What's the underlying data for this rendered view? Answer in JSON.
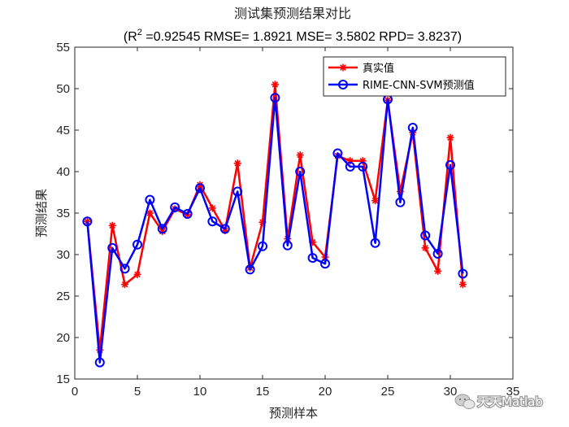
{
  "chart_data": {
    "type": "line",
    "title": "测试集预测结果对比",
    "subtitle": {
      "prefix": "(R",
      "sup": "2",
      "rest": " =0.92545 RMSE= 1.8921 MSE= 3.5802 RPD= 3.8237)"
    },
    "xlabel": "预测样本",
    "ylabel": "预测结果",
    "xlim": [
      0,
      35
    ],
    "ylim": [
      15,
      55
    ],
    "xticks": [
      0,
      5,
      10,
      15,
      20,
      25,
      30,
      35
    ],
    "yticks": [
      15,
      20,
      25,
      30,
      35,
      40,
      45,
      50,
      55
    ],
    "legend_position": "top-right",
    "x": [
      1,
      2,
      3,
      4,
      5,
      6,
      7,
      8,
      9,
      10,
      11,
      12,
      13,
      14,
      15,
      16,
      17,
      18,
      19,
      20,
      21,
      22,
      23,
      24,
      25,
      26,
      27,
      28,
      29,
      30,
      31
    ],
    "series": [
      {
        "name": "真实值",
        "color": "#ff0000",
        "marker": "asterisk",
        "values": [
          34.0,
          18.5,
          33.5,
          26.4,
          27.6,
          35.0,
          32.8,
          35.5,
          34.8,
          38.4,
          35.6,
          32.9,
          41.0,
          28.4,
          33.9,
          50.5,
          31.9,
          42.0,
          31.5,
          29.7,
          41.9,
          41.3,
          41.3,
          36.5,
          48.6,
          37.6,
          44.7,
          30.8,
          28.0,
          44.1,
          26.4
        ]
      },
      {
        "name": "RIME-CNN-SVM预测值",
        "color": "#0000ff",
        "marker": "circle",
        "values": [
          34.0,
          17.0,
          30.8,
          28.3,
          31.2,
          36.6,
          33.1,
          35.7,
          34.9,
          38.0,
          34.0,
          33.1,
          37.6,
          28.2,
          31.0,
          48.9,
          31.1,
          40.0,
          29.6,
          28.9,
          42.2,
          40.6,
          40.6,
          31.4,
          48.7,
          36.3,
          45.3,
          32.3,
          30.1,
          40.8,
          27.7
        ]
      }
    ]
  },
  "watermark": {
    "text": "天天Matlab",
    "icon": "wechat-icon"
  }
}
